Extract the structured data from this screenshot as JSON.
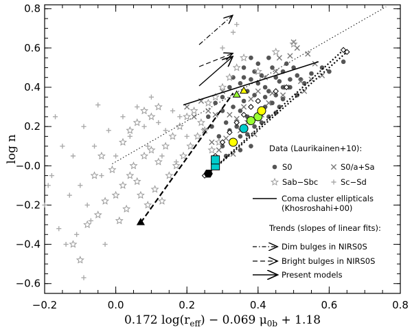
{
  "chart_data": {
    "type": "scatter",
    "xlabel": "0.172 log(r",
    "xlabel_sub": "eff",
    "xlabel_mid": ") − 0.069 μ",
    "xlabel_sub2": "0b",
    "xlabel_end": " + 1.18",
    "ylabel": "log n",
    "xlim": [
      -0.2,
      0.8
    ],
    "ylim": [
      -0.65,
      0.82
    ],
    "xticks": [
      -0.2,
      0.0,
      0.2,
      0.4,
      0.6,
      0.8
    ],
    "xtick_labels": [
      "−0.2",
      "0.0",
      "0.2",
      "0.4",
      "0.6",
      "0.8"
    ],
    "yticks": [
      -0.6,
      -0.4,
      -0.2,
      0.0,
      0.2,
      0.4,
      0.6,
      0.8
    ],
    "ytick_labels": [
      "−0.6",
      "−0.4",
      "−0.2",
      "−0.0",
      "0.2",
      "0.4",
      "0.6",
      "0.8"
    ],
    "legend": {
      "data_title": "Data (Laurikainen+10):",
      "s0": "S0",
      "s0a": "S0/a+Sa",
      "sab": "Sab−Sbc",
      "scsd": "Sc−Sd",
      "coma_line1": "Coma cluster ellipticals",
      "coma_line2": "(Khosroshahi+00)",
      "trends_title": "Trends (slopes of linear fits):",
      "dim": "Dim bulges in NIRS0S",
      "bright": "Bright bulges in NIRS0S",
      "present": "Present models"
    },
    "series": [
      {
        "name": "S0",
        "marker": "filled-circle",
        "color": "#555555",
        "points": [
          [
            0.28,
            0.32
          ],
          [
            0.3,
            0.35
          ],
          [
            0.32,
            0.4
          ],
          [
            0.33,
            0.45
          ],
          [
            0.35,
            0.42
          ],
          [
            0.36,
            0.5
          ],
          [
            0.37,
            0.38
          ],
          [
            0.38,
            0.44
          ],
          [
            0.39,
            0.48
          ],
          [
            0.4,
            0.52
          ],
          [
            0.41,
            0.46
          ],
          [
            0.42,
            0.4
          ],
          [
            0.43,
            0.55
          ],
          [
            0.44,
            0.5
          ],
          [
            0.45,
            0.45
          ],
          [
            0.46,
            0.43
          ],
          [
            0.47,
            0.48
          ],
          [
            0.48,
            0.52
          ],
          [
            0.49,
            0.4
          ],
          [
            0.5,
            0.5
          ],
          [
            0.51,
            0.46
          ],
          [
            0.52,
            0.44
          ],
          [
            0.3,
            0.28
          ],
          [
            0.31,
            0.22
          ],
          [
            0.33,
            0.3
          ],
          [
            0.34,
            0.2
          ],
          [
            0.35,
            0.28
          ],
          [
            0.36,
            0.33
          ],
          [
            0.37,
            0.25
          ],
          [
            0.38,
            0.3
          ],
          [
            0.39,
            0.36
          ],
          [
            0.4,
            0.33
          ],
          [
            0.41,
            0.28
          ],
          [
            0.42,
            0.35
          ],
          [
            0.43,
            0.38
          ],
          [
            0.44,
            0.32
          ],
          [
            0.45,
            0.36
          ],
          [
            0.46,
            0.3
          ],
          [
            0.47,
            0.34
          ],
          [
            0.36,
            0.45
          ],
          [
            0.38,
            0.55
          ],
          [
            0.4,
            0.42
          ],
          [
            0.42,
            0.3
          ],
          [
            0.34,
            0.36
          ],
          [
            0.32,
            0.18
          ],
          [
            0.35,
            0.15
          ],
          [
            0.37,
            0.16
          ],
          [
            0.39,
            0.2
          ],
          [
            0.41,
            0.22
          ],
          [
            0.43,
            0.25
          ],
          [
            0.45,
            0.27
          ],
          [
            0.47,
            0.4
          ],
          [
            0.49,
            0.44
          ],
          [
            0.51,
            0.36
          ],
          [
            0.53,
            0.42
          ],
          [
            0.55,
            0.47
          ],
          [
            0.58,
            0.5
          ],
          [
            0.6,
            0.48
          ],
          [
            0.64,
            0.53
          ],
          [
            0.3,
            0.1
          ],
          [
            0.31,
            0.05
          ],
          [
            0.29,
            0.15
          ],
          [
            0.27,
            0.2
          ],
          [
            0.26,
            0.25
          ],
          [
            0.35,
            0.08
          ],
          [
            0.33,
            0.12
          ],
          [
            0.38,
            0.1
          ]
        ]
      },
      {
        "name": "S0/a+Sa",
        "marker": "x",
        "color": "#777777",
        "points": [
          [
            0.2,
            0.3
          ],
          [
            0.22,
            0.25
          ],
          [
            0.24,
            0.33
          ],
          [
            0.26,
            0.28
          ],
          [
            0.28,
            0.26
          ],
          [
            0.3,
            0.38
          ],
          [
            0.32,
            0.26
          ],
          [
            0.34,
            0.24
          ],
          [
            0.36,
            0.3
          ],
          [
            0.38,
            0.34
          ],
          [
            0.4,
            0.38
          ],
          [
            0.42,
            0.45
          ],
          [
            0.44,
            0.37
          ],
          [
            0.46,
            0.55
          ],
          [
            0.48,
            0.4
          ],
          [
            0.5,
            0.63
          ],
          [
            0.52,
            0.43
          ],
          [
            0.54,
            0.57
          ],
          [
            0.56,
            0.52
          ],
          [
            0.58,
            0.46
          ],
          [
            0.25,
            0.18
          ],
          [
            0.27,
            0.12
          ],
          [
            0.29,
            0.08
          ],
          [
            0.31,
            0.14
          ],
          [
            0.33,
            0.06
          ],
          [
            0.35,
            0.18
          ],
          [
            0.37,
            0.22
          ],
          [
            0.39,
            0.16
          ],
          [
            0.41,
            0.26
          ],
          [
            0.43,
            0.32
          ],
          [
            0.45,
            0.48
          ],
          [
            0.47,
            0.36
          ],
          [
            0.49,
            0.56
          ],
          [
            0.51,
            0.6
          ],
          [
            0.53,
            0.38
          ],
          [
            0.55,
            0.44
          ]
        ]
      },
      {
        "name": "Sab-Sbc",
        "marker": "star",
        "color": "#999999",
        "points": [
          [
            -0.1,
            -0.48
          ],
          [
            -0.12,
            -0.4
          ],
          [
            -0.08,
            -0.3
          ],
          [
            -0.05,
            -0.25
          ],
          [
            -0.03,
            -0.18
          ],
          [
            0.0,
            -0.15
          ],
          [
            0.02,
            -0.1
          ],
          [
            0.04,
            -0.05
          ],
          [
            0.05,
            0.0
          ],
          [
            0.06,
            -0.08
          ],
          [
            0.08,
            0.05
          ],
          [
            0.1,
            0.08
          ],
          [
            0.12,
            0.02
          ],
          [
            0.14,
            0.1
          ],
          [
            0.16,
            0.15
          ],
          [
            0.18,
            0.2
          ],
          [
            0.2,
            0.25
          ],
          [
            0.22,
            0.28
          ],
          [
            0.24,
            0.22
          ],
          [
            0.26,
            0.32
          ],
          [
            0.28,
            0.35
          ],
          [
            0.3,
            0.4
          ],
          [
            0.32,
            0.45
          ],
          [
            0.34,
            0.5
          ],
          [
            0.36,
            0.55
          ],
          [
            0.15,
            -0.05
          ],
          [
            0.17,
            0.0
          ],
          [
            0.19,
            0.05
          ],
          [
            0.21,
            0.1
          ],
          [
            0.23,
            0.15
          ],
          [
            0.25,
            0.18
          ],
          [
            0.27,
            0.08
          ],
          [
            0.29,
            0.12
          ],
          [
            0.07,
            -0.15
          ],
          [
            0.09,
            -0.2
          ],
          [
            0.11,
            -0.12
          ],
          [
            0.13,
            -0.18
          ],
          [
            0.03,
            -0.22
          ],
          [
            0.01,
            -0.28
          ],
          [
            -0.01,
            -0.02
          ],
          [
            -0.04,
            0.05
          ],
          [
            -0.06,
            -0.05
          ],
          [
            0.02,
            0.12
          ],
          [
            0.04,
            0.18
          ],
          [
            0.06,
            0.22
          ],
          [
            0.08,
            0.28
          ],
          [
            0.1,
            0.25
          ],
          [
            0.12,
            0.3
          ],
          [
            0.4,
            0.48
          ],
          [
            0.45,
            0.58
          ],
          [
            0.5,
            0.62
          ]
        ]
      },
      {
        "name": "Sc-Sd",
        "marker": "plus",
        "color": "#aaaaaa",
        "points": [
          [
            -0.2,
            -0.2
          ],
          [
            -0.18,
            -0.05
          ],
          [
            -0.16,
            -0.32
          ],
          [
            -0.15,
            0.1
          ],
          [
            -0.13,
            -0.15
          ],
          [
            -0.12,
            0.05
          ],
          [
            -0.1,
            -0.1
          ],
          [
            -0.09,
            0.2
          ],
          [
            -0.08,
            -0.2
          ],
          [
            -0.06,
            0.1
          ],
          [
            -0.05,
            0.31
          ],
          [
            -0.04,
            -0.05
          ],
          [
            -0.02,
            0.18
          ],
          [
            0.0,
            0.05
          ],
          [
            0.02,
            0.25
          ],
          [
            0.04,
            0.15
          ],
          [
            0.06,
            0.3
          ],
          [
            0.08,
            0.2
          ],
          [
            0.1,
            0.35
          ],
          [
            0.12,
            0.22
          ],
          [
            0.14,
            0.18
          ],
          [
            0.16,
            0.28
          ],
          [
            0.18,
            0.25
          ],
          [
            0.2,
            0.15
          ],
          [
            -0.14,
            -0.4
          ],
          [
            -0.11,
            -0.35
          ],
          [
            -0.07,
            -0.28
          ],
          [
            -0.03,
            -0.4
          ],
          [
            -0.09,
            -0.57
          ],
          [
            0.33,
            0.68
          ],
          [
            0.34,
            0.72
          ],
          [
            0.3,
            0.6
          ],
          [
            -0.17,
            0.25
          ],
          [
            -0.19,
            -0.1
          ],
          [
            0.09,
            0.1
          ],
          [
            0.13,
            0.05
          ],
          [
            0.17,
            0.02
          ]
        ]
      }
    ],
    "coma_line": [
      [
        0.19,
        0.31
      ],
      [
        0.57,
        0.53
      ]
    ],
    "dotted_line": [
      [
        -0.01,
        0.01
      ],
      [
        0.76,
        0.81
      ]
    ],
    "dashed_triangle_line": [
      [
        0.07,
        -0.29
      ],
      [
        0.33,
        0.37
      ]
    ],
    "model_points": [
      {
        "x": 0.26,
        "y": -0.04,
        "color": "#000000",
        "marker": "hexagon"
      },
      {
        "x": 0.28,
        "y": 0.0,
        "color": "#00cccc",
        "marker": "square"
      },
      {
        "x": 0.28,
        "y": 0.03,
        "color": "#00cccc",
        "marker": "square"
      },
      {
        "x": 0.33,
        "y": 0.12,
        "color": "#ffff00",
        "marker": "circle"
      },
      {
        "x": 0.36,
        "y": 0.19,
        "color": "#00cccc",
        "marker": "circle"
      },
      {
        "x": 0.38,
        "y": 0.23,
        "color": "#99ff33",
        "marker": "circle"
      },
      {
        "x": 0.4,
        "y": 0.25,
        "color": "#99ff33",
        "marker": "circle"
      },
      {
        "x": 0.41,
        "y": 0.28,
        "color": "#ffff00",
        "marker": "circle"
      },
      {
        "x": 0.34,
        "y": 0.36,
        "color": "#99ff33",
        "marker": "triangle"
      },
      {
        "x": 0.36,
        "y": 0.38,
        "color": "#ffff00",
        "marker": "triangle"
      },
      {
        "x": 0.07,
        "y": -0.29,
        "color": "#000000",
        "marker": "triangle"
      }
    ],
    "diamonds": [
      [
        0.25,
        -0.05
      ],
      [
        0.28,
        0.05
      ],
      [
        0.3,
        0.12
      ],
      [
        0.32,
        0.17
      ],
      [
        0.34,
        0.22
      ],
      [
        0.36,
        0.26
      ],
      [
        0.38,
        0.3
      ],
      [
        0.4,
        0.33
      ],
      [
        0.45,
        0.38
      ],
      [
        0.48,
        0.4
      ],
      [
        0.64,
        0.59
      ],
      [
        0.65,
        0.58
      ]
    ]
  }
}
